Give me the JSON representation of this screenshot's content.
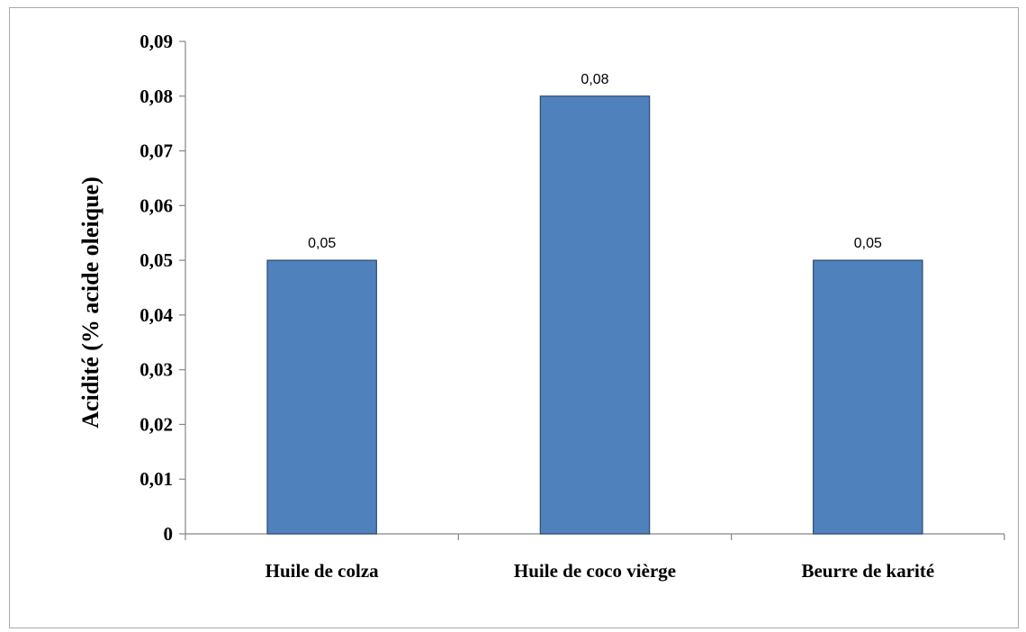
{
  "chart_data": {
    "type": "bar",
    "categories": [
      "Huile de colza",
      "Huile de coco vièrge",
      "Beurre de karité"
    ],
    "values": [
      0.05,
      0.08,
      0.05
    ],
    "data_labels": [
      "0,05",
      "0,08",
      "0,05"
    ],
    "title": "",
    "xlabel": "",
    "ylabel": "Acidité  (% acide oleique)",
    "ylim": [
      0,
      0.09
    ],
    "yticks": [
      0,
      0.01,
      0.02,
      0.03,
      0.04,
      0.05,
      0.06,
      0.07,
      0.08,
      0.09
    ],
    "ytick_labels": [
      "0",
      "0,01",
      "0,02",
      "0,03",
      "0,04",
      "0,05",
      "0,06",
      "0,07",
      "0,08",
      "0,09"
    ],
    "grid": false,
    "legend": "none",
    "colors": {
      "bar": "#4f81bd",
      "bar_border": "#2e4a70",
      "axis": "#868686"
    }
  }
}
